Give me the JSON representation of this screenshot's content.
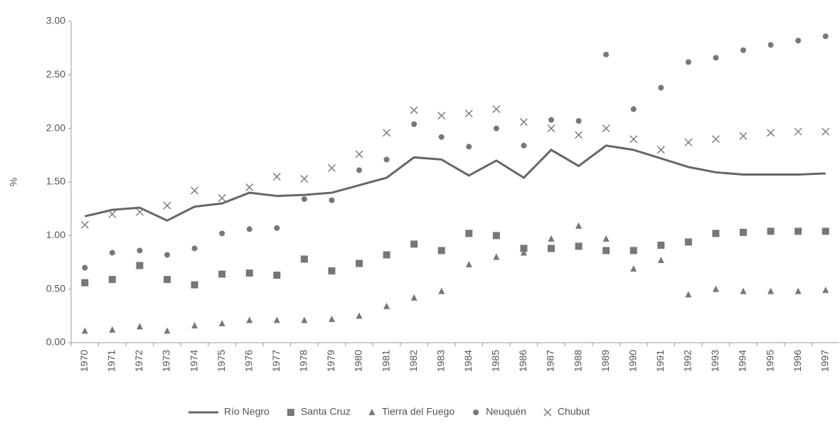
{
  "chart_data": {
    "type": "line",
    "y_label": "%",
    "categories": [
      "1970",
      "1971",
      "1972",
      "1973",
      "1974",
      "1975",
      "1976",
      "1977",
      "1978",
      "1979",
      "1980",
      "1981",
      "1982",
      "1983",
      "1984",
      "1985",
      "1986",
      "1987",
      "1988",
      "1989",
      "1990",
      "1991",
      "1992",
      "1993",
      "1994",
      "1995",
      "1996",
      "1997"
    ],
    "series": [
      {
        "name": "Río Negro",
        "color": "#666666",
        "marker": "line",
        "values": [
          1.18,
          1.24,
          1.26,
          1.14,
          1.27,
          1.3,
          1.4,
          1.37,
          1.38,
          1.4,
          1.47,
          1.54,
          1.73,
          1.71,
          1.56,
          1.7,
          1.54,
          1.8,
          1.65,
          1.84,
          1.8,
          1.72,
          1.64,
          1.59,
          1.57,
          1.57,
          1.57,
          1.58
        ]
      },
      {
        "name": "Santa Cruz",
        "color": "#777777",
        "marker": "square",
        "values": [
          0.56,
          0.59,
          0.72,
          0.59,
          0.54,
          0.64,
          0.65,
          0.63,
          0.78,
          0.67,
          0.74,
          0.82,
          0.92,
          0.86,
          1.02,
          1.0,
          0.88,
          0.88,
          0.9,
          0.86,
          0.86,
          0.91,
          0.94,
          1.02,
          1.03,
          1.04,
          1.04,
          1.04
        ]
      },
      {
        "name": "Tierra del Fuego",
        "color": "#777777",
        "marker": "triangle",
        "values": [
          0.11,
          0.12,
          0.15,
          0.11,
          0.16,
          0.18,
          0.21,
          0.21,
          0.21,
          0.22,
          0.25,
          0.34,
          0.42,
          0.48,
          0.73,
          0.8,
          0.84,
          0.97,
          1.09,
          0.97,
          0.69,
          0.77,
          0.45,
          0.5,
          0.48,
          0.48,
          0.48,
          0.49
        ]
      },
      {
        "name": "Neuquén",
        "color": "#777777",
        "marker": "circle",
        "values": [
          0.7,
          0.84,
          0.86,
          0.82,
          0.88,
          1.02,
          1.06,
          1.07,
          1.34,
          1.33,
          1.61,
          1.71,
          2.04,
          1.92,
          1.83,
          2.0,
          1.84,
          2.08,
          2.07,
          2.69,
          2.18,
          2.38,
          2.62,
          2.66,
          2.73,
          2.78,
          2.82,
          2.86
        ]
      },
      {
        "name": "Chubut",
        "color": "#777777",
        "marker": "x",
        "values": [
          1.1,
          1.2,
          1.22,
          1.28,
          1.42,
          1.35,
          1.45,
          1.55,
          1.53,
          1.63,
          1.76,
          1.96,
          2.17,
          2.12,
          2.14,
          2.18,
          2.06,
          2.0,
          1.94,
          2.0,
          1.9,
          1.8,
          1.87,
          1.9,
          1.93,
          1.96,
          1.97,
          1.97
        ]
      }
    ],
    "ylim": [
      0,
      3
    ],
    "yticks": [
      {
        "value": 0,
        "label": "0.00"
      },
      {
        "value": 0.5,
        "label": "0.50"
      },
      {
        "value": 1,
        "label": "1.00"
      },
      {
        "value": 1.5,
        "label": "1.50"
      },
      {
        "value": 2,
        "label": "2.00"
      },
      {
        "value": 2.5,
        "label": "2.50"
      },
      {
        "value": 3,
        "label": "3.00"
      }
    ],
    "legend": "bottom"
  }
}
